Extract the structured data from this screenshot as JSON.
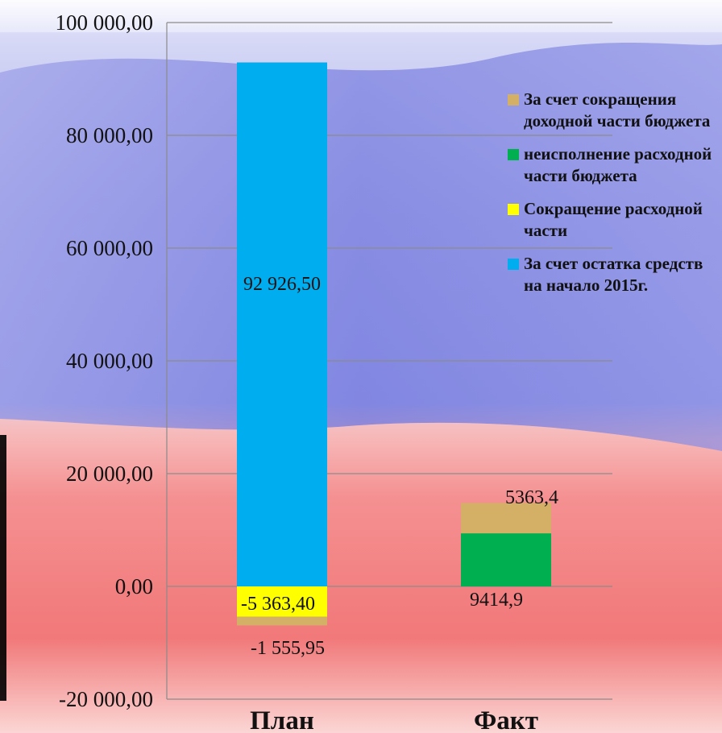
{
  "colors": {
    "bg_blue_top": "#eef0fb",
    "bg_blue": "#8a8ee6",
    "bg_red": "#f07e80",
    "bg_red_bottom": "#fbe4e3",
    "grid": "#8b8b8b"
  },
  "chart_data": {
    "type": "bar",
    "stacked": true,
    "categories": [
      "План",
      "Факт"
    ],
    "ylim": [
      -20000,
      100000
    ],
    "yticks": [
      "-20 000,00",
      "0,00",
      "20 000,00",
      "40 000,00",
      "60 000,00",
      "80 000,00",
      "100 000,00"
    ],
    "grid": true,
    "legend_position": "right",
    "series": [
      {
        "name": "За счет остатка средств на начало 2015г.",
        "color": "#00aeef",
        "values": [
          92926.5,
          0
        ],
        "labels": [
          "92 926,50",
          ""
        ]
      },
      {
        "name": "Сокращение расходной части",
        "color": "#ffff00",
        "values": [
          -5363.4,
          0
        ],
        "labels": [
          "-5 363,40",
          ""
        ]
      },
      {
        "name": "неисполнение расходной части бюджета",
        "color": "#00b050",
        "values": [
          0,
          9414.9
        ],
        "labels": [
          "",
          "9414,9"
        ]
      },
      {
        "name": "За счет сокращения доходной части бюджета",
        "color": "#d4b066",
        "values": [
          -1555.95,
          5363.4
        ],
        "labels": [
          "-1 555,95",
          "5363,4"
        ]
      }
    ],
    "legend_order": [
      3,
      2,
      1,
      0
    ]
  }
}
